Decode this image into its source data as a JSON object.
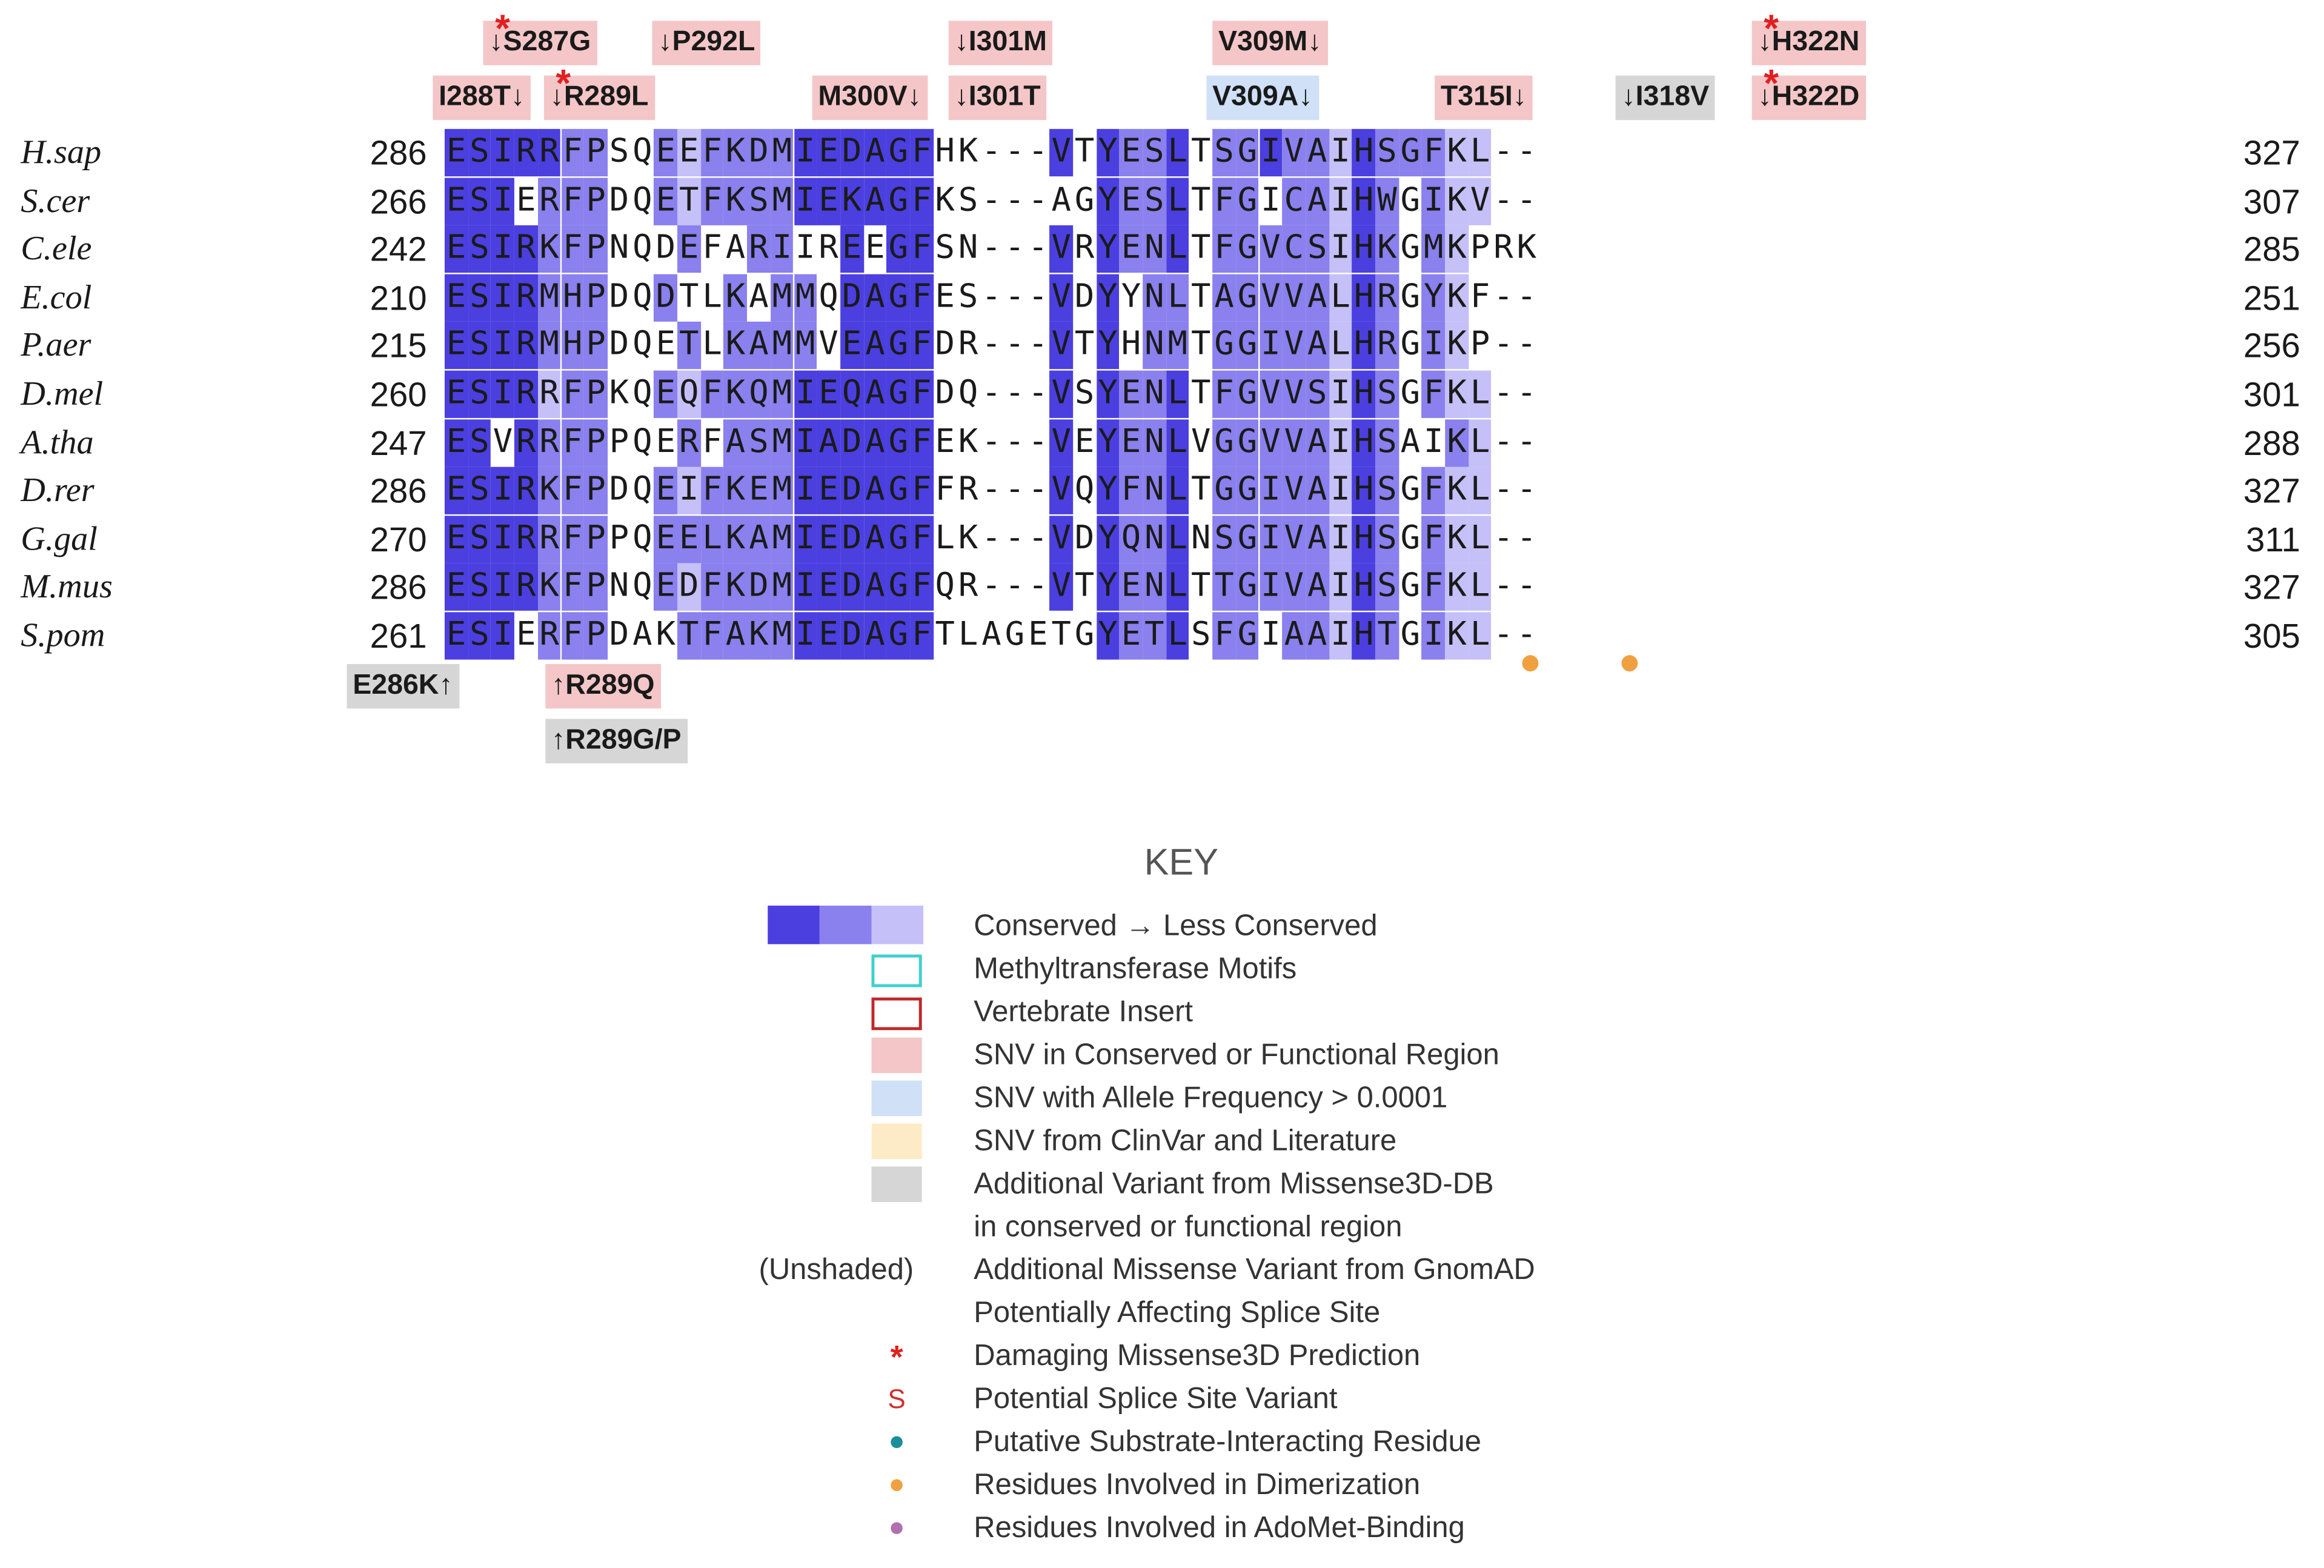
{
  "alignment": {
    "rows": [
      {
        "species": "H.sap",
        "start": "286",
        "end": "327",
        "seq": "ESIRRFPSQEEFKDMIEDAGFHK---VTYESLTSGIVAIHSGFKL--"
      },
      {
        "species": "S.cer",
        "start": "266",
        "end": "307",
        "seq": "ESIERFPDQETFKSMIEKAGFKS---AGYESLTFGICAIHWGIKV--"
      },
      {
        "species": "C.ele",
        "start": "242",
        "end": "285",
        "seq": "ESIRKFPNQDEFARIIREEGFSN---VRYENLTFGVCSIHKGMKPRK"
      },
      {
        "species": "E.col",
        "start": "210",
        "end": "251",
        "seq": "ESIRMHPDQDTLKAMMQDAGFES---VDYYNLTAGVVALHRGYKF--"
      },
      {
        "species": "P.aer",
        "start": "215",
        "end": "256",
        "seq": "ESIRMHPDQETLKAMMVEAGFDR---VTYHNMTGGIVALHRGIKP--"
      },
      {
        "species": "D.mel",
        "start": "260",
        "end": "301",
        "seq": "ESIRRFPKQEQFKQMIEQAGFDQ---VSYENLTFGVVSIHSGFKL--"
      },
      {
        "species": "A.tha",
        "start": "247",
        "end": "288",
        "seq": "ESVRRFPPQERFASMIADAGFEK---VEYENLVGGVVAIHSAIKL--"
      },
      {
        "species": "D.rer",
        "start": "286",
        "end": "327",
        "seq": "ESIRKFPDQEIFKEMIEDAGFFR---VQYFNLTGGIVAIHSGFKL--"
      },
      {
        "species": "G.gal",
        "start": "270",
        "end": "311",
        "seq": "ESIRRFPPQEELKAMIEDAGFLK---VDYQNLNSGIVAIHSGFKL--"
      },
      {
        "species": "M.mus",
        "start": "286",
        "end": "327",
        "seq": "ESIRKFPNQEDFKDMIEDAGFQR---VTYENLTTGIVAIHSGFKL--"
      },
      {
        "species": "S.pom",
        "start": "261",
        "end": "305",
        "seq": "ESIERFPDAKTFAKMIEDAGFTLAGETGYETLSFGIAAIHTGIKL--"
      }
    ],
    "conservation_levels": "0 = none, 1 = conserved, 2 = moderately conserved, 3 = less conserved; one string per row, one digit per alignment column",
    "conservation": [
      "11111220023222211111100000101221022122312223300",
      "11102220023222211111100000001221022022312023300",
      "11112220002002200101100000101221022222312023000",
      "11112220020020220111100000101022022222312023000",
      "11112220002022220111100000101022022222312023000",
      "11113220023222211111100000101221022222312023300",
      "11012220002022211111100000101221022222312002300",
      "11112220023222211111100000101221022222312023300",
      "11112220022222211111100000101221022222312023300",
      "11112220023222211111100000101221022222312023300",
      "11102220002222211111100000001221022022312023300"
    ]
  },
  "variants_top": [
    {
      "label": "S287G",
      "arrow": "↓",
      "arrow_side": "left",
      "shade": "pink",
      "damaging": true,
      "line": 1
    },
    {
      "label": "P292L",
      "arrow": "↓",
      "arrow_side": "left",
      "shade": "pink",
      "damaging": false,
      "line": 1
    },
    {
      "label": "I301M",
      "arrow": "↓",
      "arrow_side": "left",
      "shade": "pink",
      "damaging": false,
      "line": 1
    },
    {
      "label": "V309M",
      "arrow": "↓",
      "arrow_side": "right",
      "shade": "pink",
      "damaging": false,
      "line": 1
    },
    {
      "label": "H322N",
      "arrow": "↓",
      "arrow_side": "left",
      "shade": "pink",
      "damaging": true,
      "line": 1
    },
    {
      "label": "I288T",
      "arrow": "↓",
      "arrow_side": "right",
      "shade": "pink",
      "damaging": false,
      "line": 2
    },
    {
      "label": "R289L",
      "arrow": "↓",
      "arrow_side": "left",
      "shade": "pink",
      "damaging": true,
      "line": 2
    },
    {
      "label": "M300V",
      "arrow": "↓",
      "arrow_side": "right",
      "shade": "pink",
      "damaging": false,
      "line": 2
    },
    {
      "label": "I301T",
      "arrow": "↓",
      "arrow_side": "left",
      "shade": "pink",
      "damaging": false,
      "line": 2
    },
    {
      "label": "V309A",
      "arrow": "↓",
      "arrow_side": "right",
      "shade": "blue",
      "damaging": false,
      "line": 2
    },
    {
      "label": "T315I",
      "arrow": "↓",
      "arrow_side": "right",
      "shade": "pink",
      "damaging": false,
      "line": 2
    },
    {
      "label": "I318V",
      "arrow": "↓",
      "arrow_side": "left",
      "shade": "gray",
      "damaging": false,
      "line": 2
    },
    {
      "label": "H322D",
      "arrow": "↓",
      "arrow_side": "left",
      "shade": "pink",
      "damaging": true,
      "line": 2
    }
  ],
  "variants_bottom": [
    {
      "label": "E286K",
      "arrow": "↑",
      "arrow_side": "right",
      "shade": "gray",
      "line": 1
    },
    {
      "label": "R289Q",
      "arrow": "↑",
      "arrow_side": "left",
      "shade": "pink",
      "line": 1
    },
    {
      "label": "R289G/P",
      "arrow": "↑",
      "arrow_side": "left",
      "shade": "gray",
      "line": 2
    }
  ],
  "dimerization_dots": [
    {
      "column": "S.pom col 33",
      "color": "#f0a040"
    },
    {
      "column": "S.pom col 36",
      "color": "#f0a040"
    }
  ],
  "colors": {
    "conserved": "#4b3fe0",
    "mid_conserved": "#8a80ee",
    "less_conserved": "#c5c0f8",
    "snv_conserved": "#f4c6c8",
    "snv_allele_freq": "#cfe0f7",
    "snv_clinvar": "#fdebc8",
    "missense3d": "#d6d6d6",
    "methyltransferase_outline": "#3fd0d0",
    "vertebrate_outline": "#c0282a",
    "damaging_star": "#e02020",
    "splice_s": "#d03030",
    "substrate_dot": "#1a8f9a",
    "dimerization_dot": "#f0a040",
    "adomet_dot": "#b070b0"
  },
  "key": {
    "title": "KEY",
    "items": [
      {
        "symbol": "gradient",
        "text": "Conserved → Less Conserved"
      },
      {
        "symbol": "outline-cyan",
        "text": "Methyltransferase Motifs"
      },
      {
        "symbol": "outline-red",
        "text": "Vertebrate Insert"
      },
      {
        "symbol": "fill-pink",
        "text": "SNV in Conserved or Functional Region"
      },
      {
        "symbol": "fill-blue",
        "text": "SNV with Allele Frequency > 0.0001"
      },
      {
        "symbol": "fill-yellow",
        "text": "SNV from ClinVar and Literature"
      },
      {
        "symbol": "fill-gray",
        "text": "Additional Variant from Missense3D-DB"
      },
      {
        "symbol": "none",
        "text": "in conserved or functional region"
      },
      {
        "symbol": "unshaded",
        "unshaded_label": "(Unshaded)",
        "text": "Additional Missense Variant from GnomAD"
      },
      {
        "symbol": "none",
        "text": "Potentially Affecting Splice Site"
      },
      {
        "symbol": "star",
        "glyph": "*",
        "text": "Damaging Missense3D Prediction"
      },
      {
        "symbol": "splice",
        "glyph": "S",
        "text": "Potential Splice Site Variant"
      },
      {
        "symbol": "dot-teal",
        "text": "Putative Substrate-Interacting Residue"
      },
      {
        "symbol": "dot-orange",
        "text": "Residues Involved in Dimerization"
      },
      {
        "symbol": "dot-purple",
        "text": "Residues Involved in AdoMet-Binding"
      }
    ]
  }
}
